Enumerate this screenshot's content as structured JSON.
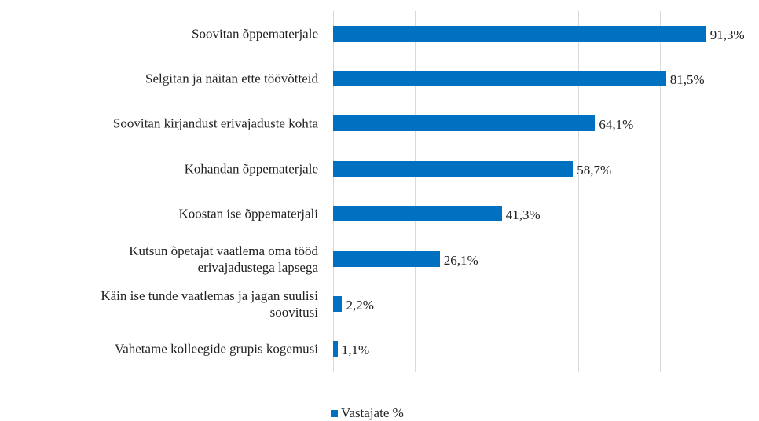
{
  "chart_data": {
    "type": "hbar",
    "categories": [
      "Soovitan õppematerjale",
      "Selgitan ja näitan ette töövõtteid",
      "Soovitan kirjandust erivajaduste kohta",
      "Kohandan õppematerjale",
      "Koostan ise õppematerjali",
      "Kutsun õpetajat vaatlema oma tööd\nerivajadustega lapsega",
      "Käin ise tunde vaatlemas ja jagan suulisi\nsoovitusi",
      "Vahetame kolleegide grupis kogemusi"
    ],
    "series": [
      {
        "name": "Vastajate %",
        "color": "#0070c0",
        "values": [
          91.3,
          81.5,
          64.1,
          58.7,
          41.3,
          26.1,
          2.2,
          1.1
        ],
        "value_labels": [
          "91,3%",
          "81,5%",
          "64,1%",
          "58,7%",
          "41,3%",
          "26,1%",
          "2,2%",
          "1,1%"
        ]
      }
    ],
    "xlim": [
      0,
      100
    ],
    "xticks": [
      0,
      20,
      40,
      60,
      80,
      100
    ],
    "grid": true,
    "legend": "bottom"
  }
}
